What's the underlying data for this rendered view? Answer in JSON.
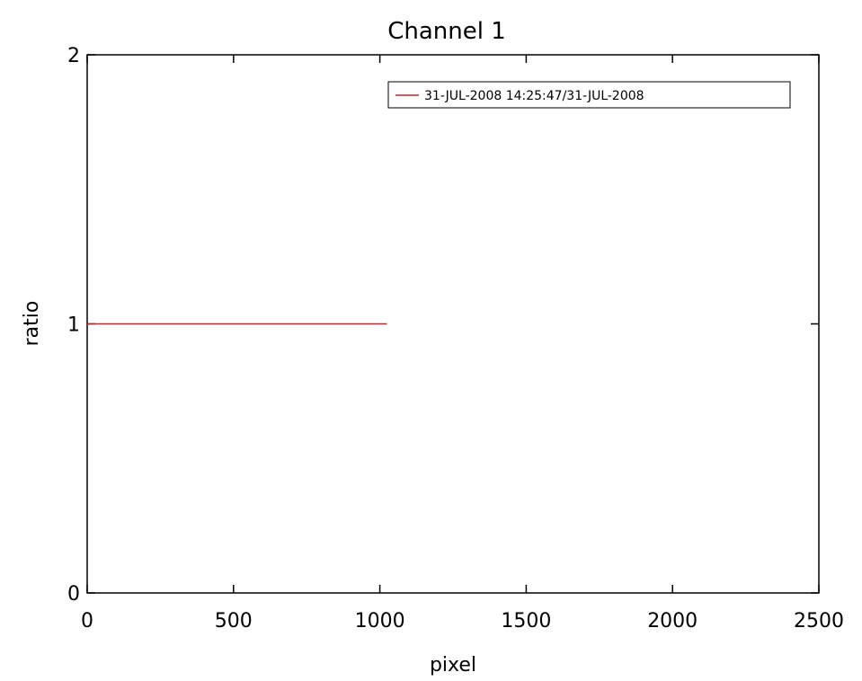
{
  "chart_data": {
    "type": "line",
    "title": "Channel 1",
    "xlabel": "pixel",
    "ylabel": "ratio",
    "xlim": [
      0,
      2500
    ],
    "ylim": [
      0,
      2
    ],
    "xticks": [
      0,
      500,
      1000,
      1500,
      2000,
      2500
    ],
    "yticks": [
      0,
      1,
      2
    ],
    "grid": false,
    "legend_position": "top-right",
    "series": [
      {
        "name": "31-JUL-2008 14:25:47/31-JUL-2008",
        "color": "#c0282a",
        "x": [
          0,
          1024
        ],
        "y": [
          1,
          1
        ]
      }
    ]
  }
}
